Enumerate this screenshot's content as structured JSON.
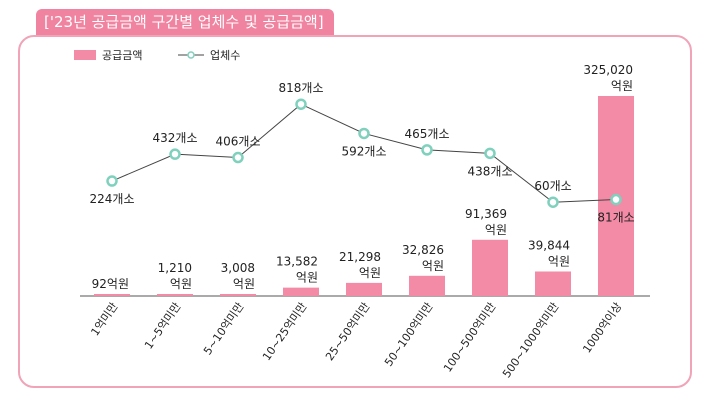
{
  "chart_data": {
    "type": "bar+line",
    "title": "['23년 공급금액 구간별 업체수 및 공급금액]",
    "categories": [
      "1억미만",
      "1~5억미만",
      "5~10억미만",
      "10~25억미만",
      "25~50억미만",
      "50~100억미만",
      "100~500억미만",
      "500~1000억미만",
      "1000억이상"
    ],
    "series": [
      {
        "name": "공급금액",
        "type": "bar",
        "unit": "억원",
        "color": "#f38ba6",
        "values": [
          92,
          1210,
          3008,
          13582,
          21298,
          32826,
          91369,
          39844,
          325020
        ],
        "labels": [
          "92억원",
          "1,210\n억원",
          "3,008\n억원",
          "13,582\n억원",
          "21,298\n억원",
          "32,826\n억원",
          "91,369\n억원",
          "39,844\n억원",
          "325,020\n억원"
        ]
      },
      {
        "name": "업체수",
        "type": "line",
        "unit": "개소",
        "color": "#444444",
        "marker_color": "#7fd1bd",
        "values": [
          224,
          432,
          406,
          818,
          592,
          465,
          438,
          60,
          81
        ],
        "labels": [
          "224개소",
          "432개소",
          "406개소",
          "818개소",
          "592개소",
          "465개소",
          "438개소",
          "60개소",
          "81개소"
        ]
      }
    ],
    "legend": "top-left",
    "grid": false
  },
  "colors": {
    "accent": "#f0839f",
    "border": "#f1a3b8"
  }
}
